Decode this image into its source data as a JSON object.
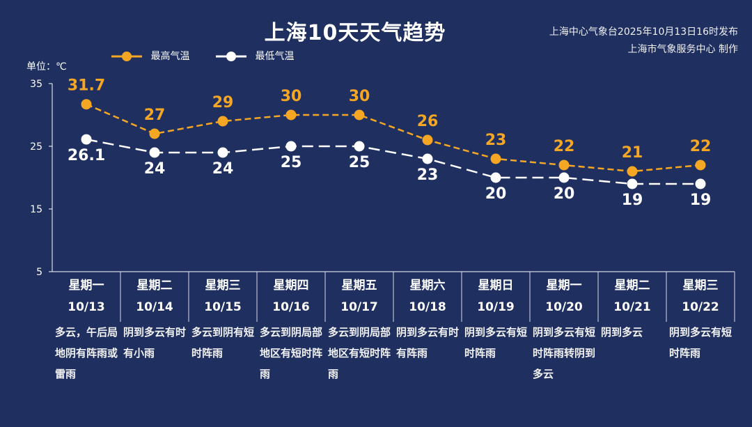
{
  "header": {
    "title": "上海10天天气趋势",
    "publisher_line1": "上海中心气象台2025年10月13日16时发布",
    "publisher_line2": "上海市气象服务中心 制作",
    "unit_label": "单位：℃"
  },
  "colors": {
    "background": "#1f3060",
    "high": "#f5a623",
    "low": "#ffffff"
  },
  "days": [
    {
      "weekday": "星期一",
      "date": "10/13",
      "weather": "多云，午后局地阴有阵雨或雷雨"
    },
    {
      "weekday": "星期二",
      "date": "10/14",
      "weather": "阴到多云有时有小雨"
    },
    {
      "weekday": "星期三",
      "date": "10/15",
      "weather": "多云到阴有短时阵雨"
    },
    {
      "weekday": "星期四",
      "date": "10/16",
      "weather": "多云到阴局部地区有短时阵雨"
    },
    {
      "weekday": "星期五",
      "date": "10/17",
      "weather": "多云到阴局部地区有短时阵雨"
    },
    {
      "weekday": "星期六",
      "date": "10/18",
      "weather": "阴到多云有时有阵雨"
    },
    {
      "weekday": "星期日",
      "date": "10/19",
      "weather": "阴到多云有短时阵雨"
    },
    {
      "weekday": "星期一",
      "date": "10/20",
      "weather": "阴到多云有短时阵雨转阴到多云"
    },
    {
      "weekday": "星期二",
      "date": "10/21",
      "weather": "阴到多云"
    },
    {
      "weekday": "星期三",
      "date": "10/22",
      "weather": "阴到多云有短时阵雨"
    }
  ],
  "chart_data": {
    "type": "line",
    "title": "上海10天天气趋势",
    "ylabel": "单位：℃",
    "ylim": [
      5,
      35
    ],
    "yticks": [
      5,
      15,
      25,
      35
    ],
    "categories": [
      "10/13",
      "10/14",
      "10/15",
      "10/16",
      "10/17",
      "10/18",
      "10/19",
      "10/20",
      "10/21",
      "10/22"
    ],
    "series": [
      {
        "name": "最高气温",
        "color": "#f5a623",
        "values": [
          31.7,
          27,
          29,
          30,
          30,
          26,
          23,
          22,
          21,
          22
        ],
        "labels": [
          "31.7",
          "27",
          "29",
          "30",
          "30",
          "26",
          "23",
          "22",
          "21",
          "22"
        ]
      },
      {
        "name": "最低气温",
        "color": "#ffffff",
        "values": [
          26.1,
          24,
          24,
          25,
          25,
          23,
          20,
          20,
          19,
          19
        ],
        "labels": [
          "26.1",
          "24",
          "24",
          "25",
          "25",
          "23",
          "20",
          "20",
          "19",
          "19"
        ]
      }
    ],
    "legend_position": "top-left",
    "grid": false
  }
}
